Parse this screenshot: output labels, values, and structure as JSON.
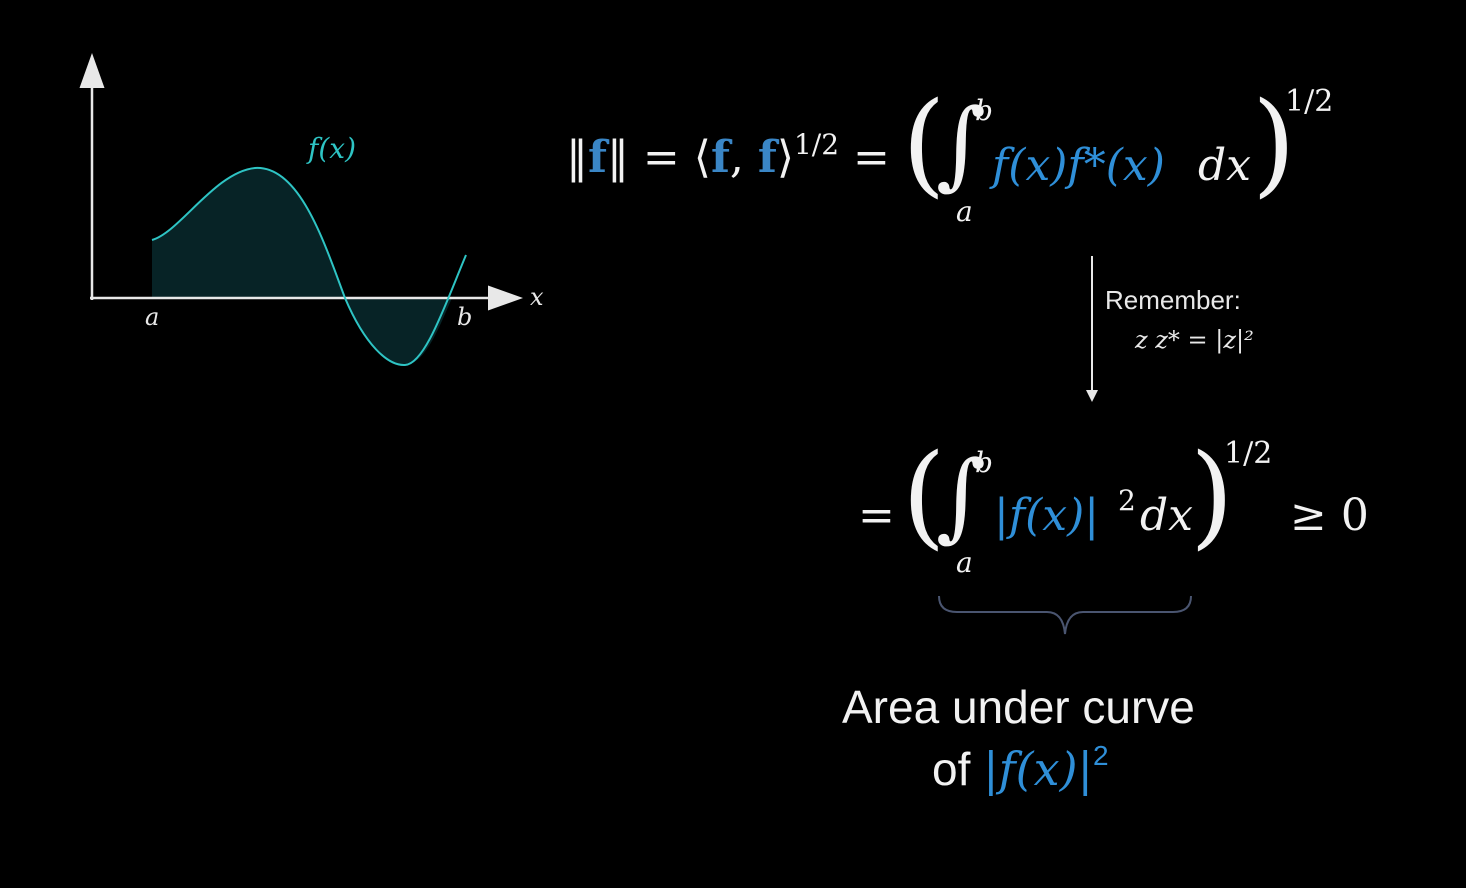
{
  "graph": {
    "curve_label": "f(x)",
    "a_label": "a",
    "b_label": "b",
    "axis_label": "x",
    "curve_color": "#2ec4c4"
  },
  "norm_eq": {
    "lhs_open": "‖",
    "lhs_f": "f",
    "lhs_close": "‖ = ⟨",
    "inner_f1": "f",
    "comma": ", ",
    "inner_f2": "f",
    "inner_close": "⟩",
    "exp1": "1/2",
    "equals": " = ",
    "lower": "a",
    "upper": "b",
    "integrand": "f(x)f*(x)",
    "dx": "dx",
    "exp2": "1/2"
  },
  "reminder": {
    "title": "Remember:",
    "identity": "z z* = |z|²"
  },
  "second_eq": {
    "equals": "=",
    "lower": "a",
    "upper": "b",
    "integrand": "|f(x)|",
    "power": "2",
    "dx": "dx",
    "exp": "1/2",
    "ge": "≥ 0"
  },
  "caption": {
    "line1": "Area under curve",
    "line2_prefix": "of ",
    "line2_expr": "|f(x)|",
    "line2_power": "2"
  },
  "colors": {
    "accent_blue": "#2f8fd8",
    "curve_teal": "#2ec4c4",
    "text": "#f2f2f2"
  }
}
